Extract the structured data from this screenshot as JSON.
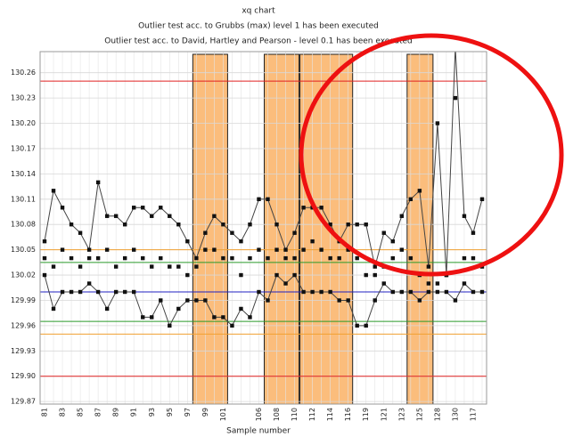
{
  "chart_data": {
    "type": "line",
    "title": "xq chart",
    "subtitles": [
      "Outlier test acc. to Grubbs (max) level 1 has been executed",
      "Outlier test acc. to David, Hartley and Pearson - level 0.1 has been executed"
    ],
    "x_label": "Sample number",
    "categories": [
      "81",
      null,
      "83",
      null,
      "85",
      null,
      "87",
      null,
      "89",
      null,
      "91",
      null,
      "93",
      null,
      "95",
      null,
      "97",
      null,
      "99",
      null,
      "101",
      null,
      null,
      null,
      "106",
      null,
      "108",
      null,
      "110",
      null,
      "112",
      null,
      "114",
      null,
      "116",
      null,
      "119",
      null,
      "121",
      null,
      "123",
      null,
      "125",
      null,
      "128",
      null,
      "130",
      null,
      "117",
      null
    ],
    "series": [
      {
        "color": "#444444",
        "line": true,
        "values": [
          130.06,
          130.12,
          130.1,
          130.08,
          130.07,
          130.05,
          130.13,
          130.09,
          130.09,
          130.08,
          130.1,
          130.1,
          130.09,
          130.1,
          130.09,
          130.08,
          130.06,
          130.04,
          130.07,
          130.09,
          130.08,
          130.07,
          130.06,
          130.08,
          130.11,
          130.11,
          130.08,
          130.05,
          130.07,
          130.1,
          130.1,
          130.1,
          130.08,
          130.06,
          130.08,
          130.08,
          130.08,
          130.03,
          130.07,
          130.06,
          130.09,
          130.11,
          130.12,
          130.03,
          130.2,
          130.02,
          130.29,
          130.09,
          130.07,
          130.11
        ]
      },
      {
        "color": "#444444",
        "line": false,
        "values": [
          130.04,
          130.03,
          130.05,
          130.04,
          130.03,
          130.04,
          130.04,
          130.05,
          130.03,
          130.04,
          130.05,
          130.04,
          130.03,
          130.04,
          130.03,
          130.03,
          130.02,
          130.03,
          130.05,
          130.05,
          130.04,
          130.04,
          130.02,
          130.04,
          130.05,
          130.04,
          130.05,
          130.04,
          130.04,
          130.05,
          130.06,
          130.05,
          130.04,
          130.04,
          130.05,
          130.04,
          130.02,
          130.02,
          130.03,
          130.04,
          130.05,
          130.04,
          130.02,
          130.01,
          130.01,
          130.02,
          130.23,
          130.04,
          130.04,
          130.03
        ]
      },
      {
        "color": "#444444",
        "line": true,
        "values": [
          130.02,
          129.98,
          130.0,
          130.0,
          130.0,
          130.01,
          130.0,
          129.98,
          130.0,
          130.0,
          130.0,
          129.97,
          129.97,
          129.99,
          129.96,
          129.98,
          129.99,
          129.99,
          129.99,
          129.97,
          129.97,
          129.96,
          129.98,
          129.97,
          130.0,
          129.99,
          130.02,
          130.01,
          130.02,
          130.0,
          130.0,
          130.0,
          130.0,
          129.99,
          129.99,
          129.96,
          129.96,
          129.99,
          130.01,
          130.0,
          130.0,
          130.0,
          129.99,
          130.0,
          130.0,
          130.0,
          129.99,
          130.01,
          130.0,
          130.0
        ]
      }
    ],
    "hlines": [
      {
        "value": 130.25,
        "color": "#e02020"
      },
      {
        "value": 129.9,
        "color": "#e02020"
      },
      {
        "value": 130.05,
        "color": "#f0a030"
      },
      {
        "value": 129.95,
        "color": "#f0a030"
      },
      {
        "value": 130.035,
        "color": "#2a9a2a"
      },
      {
        "value": 129.965,
        "color": "#2a9a2a"
      },
      {
        "value": 130.0,
        "color": "#2020c0"
      }
    ],
    "highlights": [
      [
        17,
        20
      ],
      [
        25,
        28
      ],
      [
        29,
        34
      ],
      [
        41,
        43
      ]
    ],
    "highlight_color": "#fbbd7c",
    "ylim": [
      129.867,
      130.285
    ],
    "yticks": [
      129.87,
      {
        "value": 129.9,
        "label": "129.90"
      },
      129.93,
      129.96,
      129.99,
      130.02,
      130.05,
      130.08,
      130.11,
      130.14,
      130.17,
      {
        "value": 130.2,
        "label": "130.20"
      },
      130.23,
      130.26
    ],
    "grid": true
  }
}
